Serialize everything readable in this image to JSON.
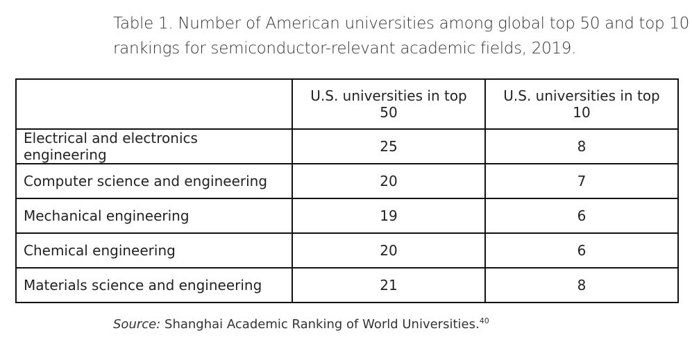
{
  "title": {
    "lines": [
      "Table 1. Number of American universities among global top 50 and top 10",
      "rankings for semiconductor-relevant academic fields, 2019."
    ]
  },
  "table": {
    "columns": [
      "U.S. universities in top 50",
      "U.S. universities in top 10"
    ],
    "rows": [
      [
        "Electrical and electronics engineering",
        25,
        8
      ],
      [
        "Computer science and engineering",
        20,
        7
      ],
      [
        "Mechanical engineering",
        19,
        6
      ],
      [
        "Chemical engineering",
        20,
        6
      ],
      [
        "Materials science and engineering",
        21,
        8
      ]
    ]
  },
  "source": {
    "label": "Source:",
    "text": "Shanghai Academic Ranking of World Universities.",
    "note": "40"
  }
}
